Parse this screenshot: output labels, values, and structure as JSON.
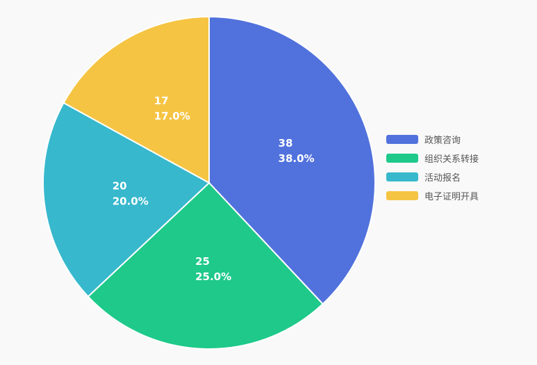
{
  "chart_data": {
    "type": "pie",
    "categories": [
      "政策咨询",
      "组织关系转接",
      "活动报名",
      "电子证明开具"
    ],
    "values": [
      38,
      25,
      20,
      17
    ],
    "percent_labels": [
      "38.0%",
      "25.0%",
      "20.0%",
      "17.0%"
    ],
    "colors": [
      "#5172dd",
      "#1ec98a",
      "#37b8cd",
      "#f6c443"
    ],
    "start_angle": "12 o'clock",
    "direction": "clockwise",
    "legend_position": "right"
  }
}
